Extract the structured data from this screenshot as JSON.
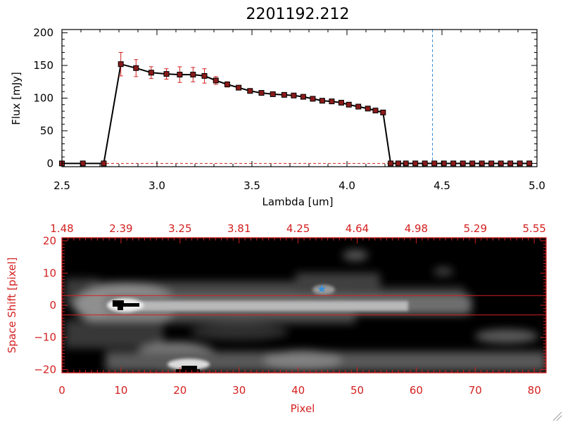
{
  "colors": {
    "spectrum_line": "#000000",
    "marker_fill": "#8b1a1a",
    "error_bar": "#d42020",
    "vline": "#3a8fd8",
    "image_axes": "#d42020",
    "star_marker": "#3a8fd8"
  },
  "chart_data": [
    {
      "type": "line",
      "title": "2201192.212",
      "xlabel": "Lambda [um]",
      "ylabel": "Flux [mJy]",
      "xlim": [
        2.5,
        5.0
      ],
      "ylim": [
        -5,
        205
      ],
      "xticks": [
        2.5,
        3.0,
        3.5,
        4.0,
        4.5,
        5.0
      ],
      "xtick_labels": [
        "2.5",
        "3.0",
        "3.5",
        "4.0",
        "4.5",
        "5.0"
      ],
      "yticks": [
        0,
        50,
        100,
        150,
        200
      ],
      "ytick_labels": [
        "0",
        "50",
        "100",
        "150",
        "200"
      ],
      "vline_x": 4.45,
      "hline_y": 0,
      "series": [
        {
          "x": [
            2.5,
            2.61,
            2.72,
            2.81,
            2.89,
            2.97,
            3.05,
            3.12,
            3.19,
            3.25,
            3.31,
            3.37,
            3.43,
            3.49,
            3.55,
            3.61,
            3.67,
            3.72,
            3.77,
            3.82,
            3.87,
            3.92,
            3.97,
            4.01,
            4.06,
            4.11,
            4.15,
            4.19,
            4.23,
            4.27,
            4.31,
            4.36,
            4.41,
            4.46,
            4.51,
            4.56,
            4.61,
            4.66,
            4.71,
            4.76,
            4.81,
            4.86,
            4.91,
            4.96
          ],
          "y": [
            0,
            0,
            0,
            152,
            146,
            139,
            137,
            136,
            136,
            134,
            127,
            121,
            116,
            111,
            108,
            106,
            105,
            104,
            102,
            99,
            96,
            95,
            93,
            90,
            87,
            84,
            81,
            78,
            0,
            0,
            0,
            0,
            0,
            0,
            0,
            0,
            0,
            0,
            0,
            0,
            0,
            0,
            0,
            0
          ],
          "yerr": [
            0,
            0,
            0,
            18,
            13,
            9,
            8,
            12,
            11,
            11,
            6,
            4,
            3,
            3,
            2,
            2,
            2,
            2,
            2,
            2,
            2,
            2,
            2,
            2,
            2,
            2,
            2,
            2,
            0,
            0,
            0,
            0,
            0,
            0,
            0,
            0,
            0,
            0,
            0,
            0,
            0,
            0,
            0,
            0
          ]
        }
      ]
    },
    {
      "type": "heatmap",
      "xlabel": "Pixel",
      "ylabel": "Space Shift [pixel]",
      "xlim": [
        0,
        82
      ],
      "ylim": [
        -21,
        21
      ],
      "xticks": [
        0,
        10,
        20,
        30,
        40,
        50,
        60,
        70,
        80
      ],
      "xtick_labels": [
        "0",
        "10",
        "20",
        "30",
        "40",
        "50",
        "60",
        "70",
        "80"
      ],
      "yticks": [
        -20,
        -10,
        0,
        10,
        20
      ],
      "ytick_labels": [
        "−20",
        "−10",
        "0",
        "10",
        "20"
      ],
      "top_tick_labels": [
        "1.48",
        "2.39",
        "3.25",
        "3.81",
        "4.25",
        "4.64",
        "4.98",
        "5.29",
        "5.55"
      ],
      "hlines": [
        3,
        -3
      ],
      "star_marker": {
        "x": 44,
        "y": 5
      },
      "colormap": "grayscale"
    }
  ]
}
